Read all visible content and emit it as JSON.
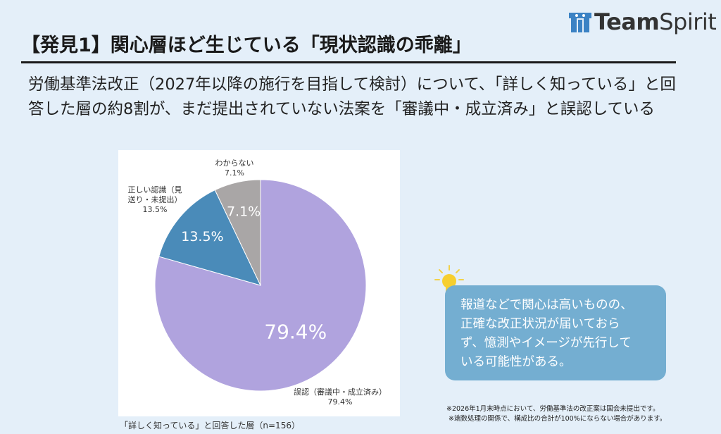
{
  "logo": {
    "text_bold": "Team",
    "text_light": "Spirit",
    "color": "#3b82c4"
  },
  "title": "【発見1】関心層ほど生じている「現状認識の乖離」",
  "lead": "労働基準法改正（2027年以降の施行を目指して検討）について、「詳しく知っている」と回答した層の約8割が、まだ提出されていない法案を「審議中・成立済み」と誤認している",
  "chart_data": {
    "type": "pie",
    "start": "12 o'clock, clockwise",
    "slices": [
      {
        "label": "誤認（審議中・成立済み）",
        "value": 79.4,
        "display": "79.4%",
        "color": "#b0a3de"
      },
      {
        "label": "正しい認識（見送り・未提出）",
        "value": 13.5,
        "display": "13.5%",
        "color": "#4a8bb9"
      },
      {
        "label": "わからない",
        "value": 7.1,
        "display": "7.1%",
        "color": "#a9a6a6"
      }
    ],
    "outer_labels": [
      {
        "line1": "誤認（審議中・成立済み）",
        "line2": "79.4%"
      },
      {
        "line1": "正しい認識（見",
        "line1b": "送り・未提出）",
        "line2": "13.5%"
      },
      {
        "line1": "わからない",
        "line2": "7.1%"
      }
    ],
    "caption": "「詳しく知っている」と回答した層（n=156）"
  },
  "callout": {
    "lines": [
      "報道などで関心は高いものの、",
      "正確な改正状況が届いておら",
      "ず、憶測やイメージが先行して",
      "いる可能性がある。"
    ],
    "icon": "lightbulb-icon"
  },
  "notes": [
    "※2026年1月末時点において、労働基準法の改正案は国会未提出です。",
    "※端数処理の関係で、構成比の合計が100%にならない場合があります。"
  ]
}
